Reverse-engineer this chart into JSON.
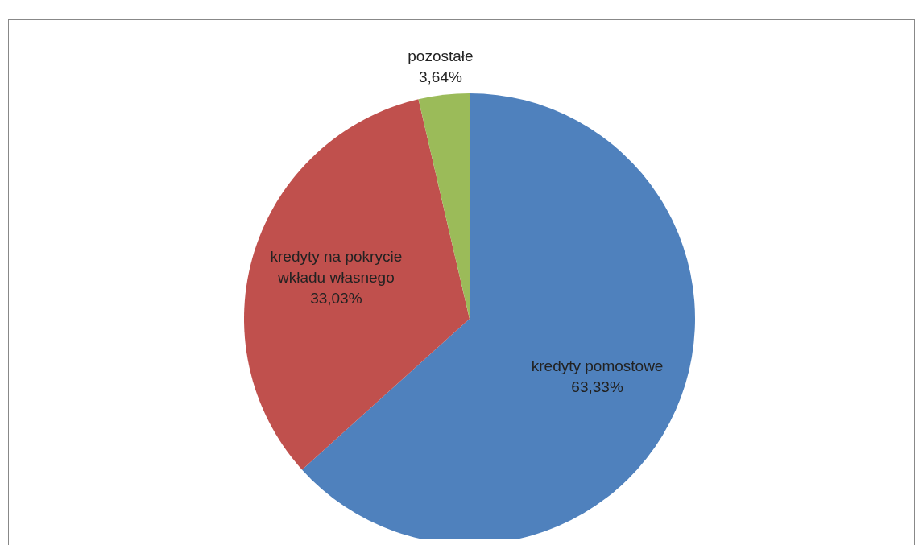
{
  "chart_data": {
    "type": "pie",
    "categories": [
      "kredyty pomostowe",
      "kredyty na pokrycie wkładu własnego",
      "pozostałe"
    ],
    "values": [
      63.33,
      33.03,
      3.64
    ],
    "value_labels": [
      "63,33%",
      "33,03%",
      "3,64%"
    ],
    "colors": [
      "#4f81bd",
      "#c0504d",
      "#9bbb59"
    ]
  }
}
